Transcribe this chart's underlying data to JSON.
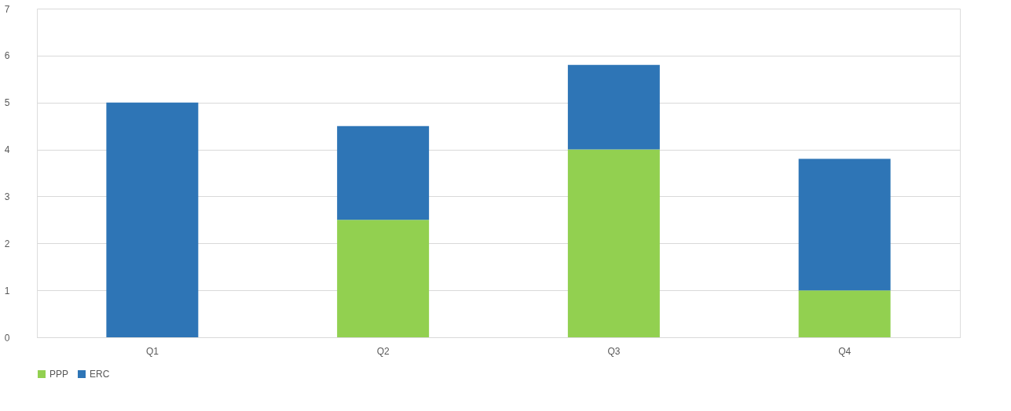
{
  "chart_data": {
    "type": "bar",
    "stacked": true,
    "categories": [
      "Q1",
      "Q2",
      "Q3",
      "Q4"
    ],
    "series": [
      {
        "name": "PPP",
        "color": "#92d050",
        "values": [
          0,
          2.5,
          4,
          1
        ]
      },
      {
        "name": "ERC",
        "color": "#2e75b6",
        "values": [
          5,
          2,
          1.8,
          2.8
        ]
      }
    ],
    "ylim": [
      0,
      7
    ],
    "yticks": [
      0,
      1,
      2,
      3,
      4,
      5,
      6,
      7
    ],
    "grid": "y",
    "legend": "bottom"
  }
}
